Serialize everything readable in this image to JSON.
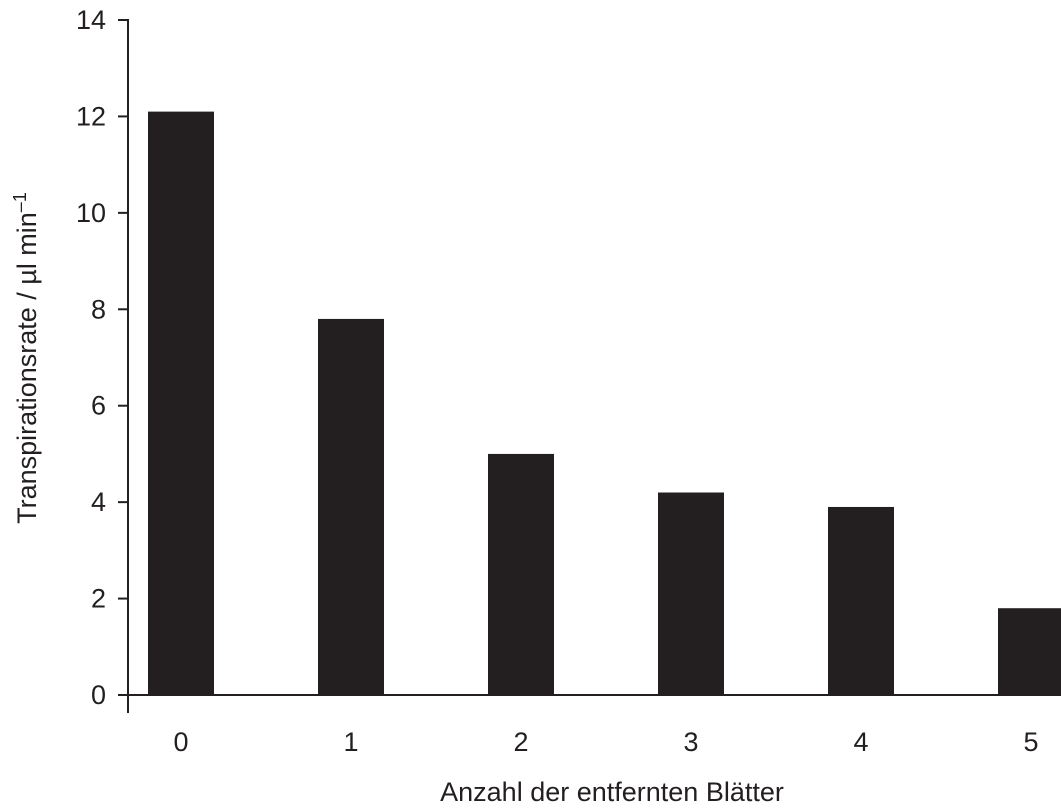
{
  "chart_data": {
    "type": "bar",
    "categories": [
      "0",
      "1",
      "2",
      "3",
      "4",
      "5"
    ],
    "values": [
      12.1,
      7.8,
      5.0,
      4.2,
      3.9,
      1.8
    ],
    "title": "",
    "xlabel": "Anzahl der entfernten Blätter",
    "ylabel": "Transpirationsrate /  µl min",
    "ylabel_superscript": "–1",
    "ylim": [
      0,
      14
    ],
    "yticks": [
      "0",
      "2",
      "4",
      "6",
      "8",
      "10",
      "12",
      "14"
    ],
    "grid": false,
    "legend": "none",
    "bar_color": "#231f20"
  }
}
